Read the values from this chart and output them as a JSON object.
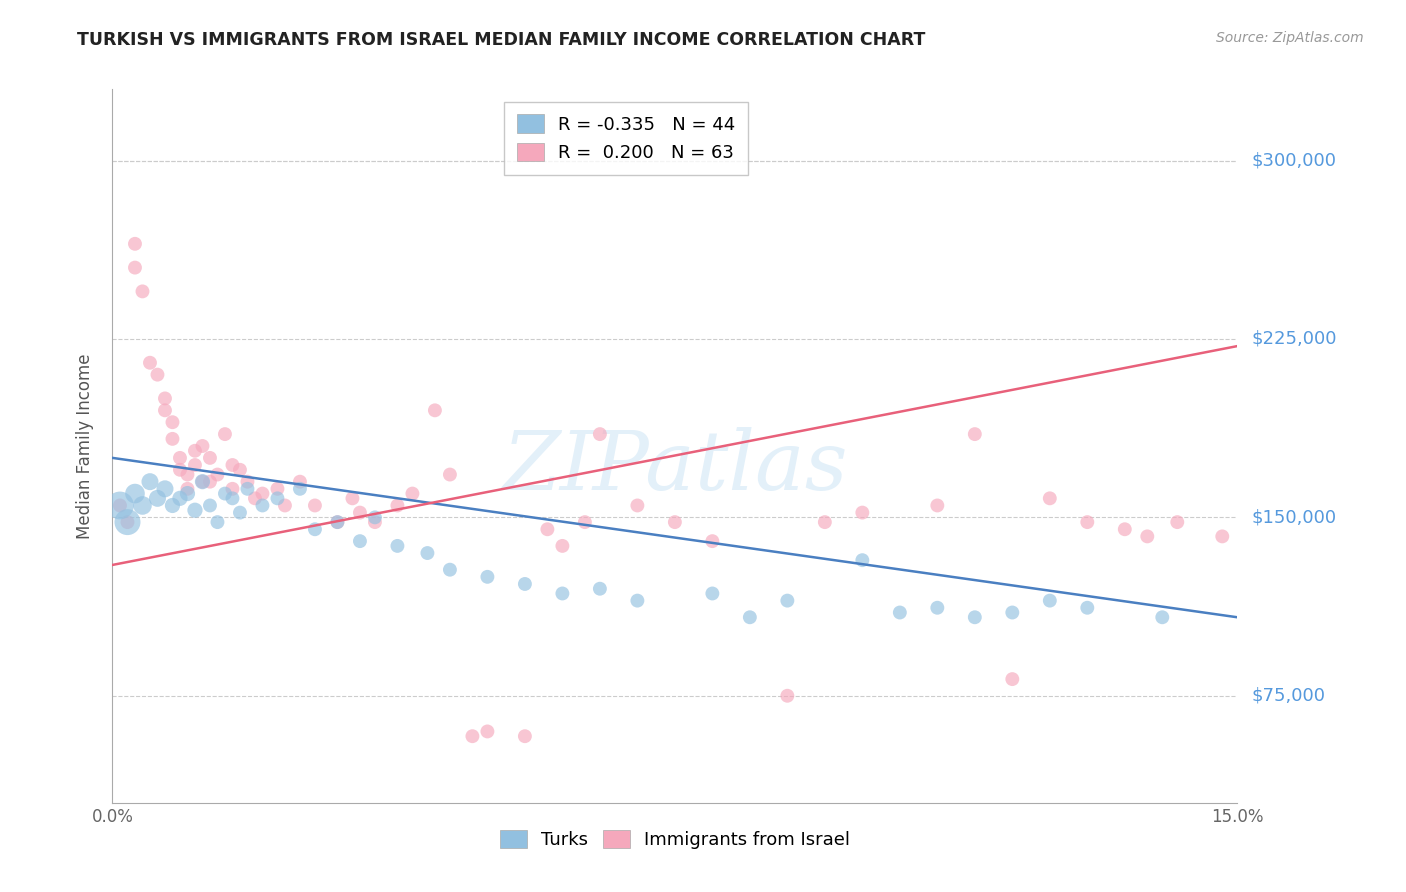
{
  "title": "TURKISH VS IMMIGRANTS FROM ISRAEL MEDIAN FAMILY INCOME CORRELATION CHART",
  "source": "Source: ZipAtlas.com",
  "ylabel": "Median Family Income",
  "xlim": [
    0.0,
    0.15
  ],
  "ylim": [
    30000,
    330000
  ],
  "yticks": [
    75000,
    150000,
    225000,
    300000
  ],
  "ytick_labels": [
    "$75,000",
    "$150,000",
    "$225,000",
    "$300,000"
  ],
  "xticks": [
    0.0,
    0.05,
    0.1,
    0.15
  ],
  "xtick_labels": [
    "0.0%",
    "",
    "",
    "15.0%"
  ],
  "blue_color": "#92c0e0",
  "pink_color": "#f5a8bc",
  "blue_line_color": "#4a7fc1",
  "pink_line_color": "#e8607a",
  "right_label_color": "#5599dd",
  "R_blue": "-0.335",
  "N_blue": "44",
  "R_pink": "0.200",
  "N_pink": "63",
  "blue_line_y0": 175000,
  "blue_line_y1": 108000,
  "pink_line_y0": 130000,
  "pink_line_y1": 222000,
  "blue_scatter_x": [
    0.001,
    0.002,
    0.003,
    0.004,
    0.005,
    0.006,
    0.007,
    0.008,
    0.009,
    0.01,
    0.011,
    0.012,
    0.013,
    0.014,
    0.015,
    0.016,
    0.017,
    0.018,
    0.02,
    0.022,
    0.025,
    0.027,
    0.03,
    0.033,
    0.035,
    0.038,
    0.042,
    0.045,
    0.05,
    0.055,
    0.06,
    0.065,
    0.07,
    0.08,
    0.085,
    0.09,
    0.1,
    0.105,
    0.11,
    0.115,
    0.12,
    0.125,
    0.13,
    0.14
  ],
  "blue_scatter_y": [
    155000,
    148000,
    160000,
    155000,
    165000,
    158000,
    162000,
    155000,
    158000,
    160000,
    153000,
    165000,
    155000,
    148000,
    160000,
    158000,
    152000,
    162000,
    155000,
    158000,
    162000,
    145000,
    148000,
    140000,
    150000,
    138000,
    135000,
    128000,
    125000,
    122000,
    118000,
    120000,
    115000,
    118000,
    108000,
    115000,
    132000,
    110000,
    112000,
    108000,
    110000,
    115000,
    112000,
    108000
  ],
  "blue_scatter_sizes": [
    400,
    350,
    200,
    180,
    150,
    150,
    150,
    120,
    120,
    120,
    120,
    120,
    100,
    100,
    100,
    100,
    100,
    100,
    100,
    100,
    100,
    100,
    100,
    100,
    100,
    100,
    100,
    100,
    100,
    100,
    100,
    100,
    100,
    100,
    100,
    100,
    100,
    100,
    100,
    100,
    100,
    100,
    100,
    100
  ],
  "pink_scatter_x": [
    0.001,
    0.002,
    0.003,
    0.003,
    0.004,
    0.005,
    0.006,
    0.007,
    0.007,
    0.008,
    0.008,
    0.009,
    0.009,
    0.01,
    0.01,
    0.011,
    0.011,
    0.012,
    0.012,
    0.013,
    0.013,
    0.014,
    0.015,
    0.016,
    0.016,
    0.017,
    0.018,
    0.019,
    0.02,
    0.022,
    0.023,
    0.025,
    0.027,
    0.03,
    0.032,
    0.033,
    0.035,
    0.038,
    0.04,
    0.043,
    0.045,
    0.048,
    0.05,
    0.055,
    0.058,
    0.06,
    0.063,
    0.065,
    0.07,
    0.075,
    0.08,
    0.09,
    0.095,
    0.1,
    0.11,
    0.115,
    0.12,
    0.125,
    0.13,
    0.135,
    0.138,
    0.142,
    0.148
  ],
  "pink_scatter_y": [
    155000,
    148000,
    265000,
    255000,
    245000,
    215000,
    210000,
    200000,
    195000,
    190000,
    183000,
    175000,
    170000,
    168000,
    162000,
    178000,
    172000,
    165000,
    180000,
    165000,
    175000,
    168000,
    185000,
    172000,
    162000,
    170000,
    165000,
    158000,
    160000,
    162000,
    155000,
    165000,
    155000,
    148000,
    158000,
    152000,
    148000,
    155000,
    160000,
    195000,
    168000,
    58000,
    60000,
    58000,
    145000,
    138000,
    148000,
    185000,
    155000,
    148000,
    140000,
    75000,
    148000,
    152000,
    155000,
    185000,
    82000,
    158000,
    148000,
    145000,
    142000,
    148000,
    142000
  ],
  "pink_scatter_sizes": [
    100,
    100,
    100,
    100,
    100,
    100,
    100,
    100,
    100,
    100,
    100,
    100,
    100,
    100,
    100,
    100,
    100,
    100,
    100,
    100,
    100,
    100,
    100,
    100,
    100,
    100,
    100,
    100,
    100,
    100,
    100,
    100,
    100,
    100,
    100,
    100,
    100,
    100,
    100,
    100,
    100,
    100,
    100,
    100,
    100,
    100,
    100,
    100,
    100,
    100,
    100,
    100,
    100,
    100,
    100,
    100,
    100,
    100,
    100,
    100,
    100,
    100,
    100
  ]
}
